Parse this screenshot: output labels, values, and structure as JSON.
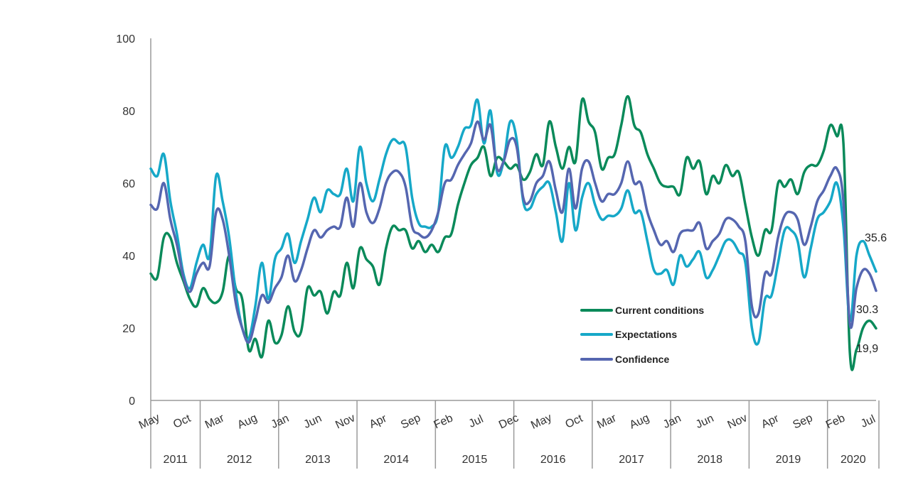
{
  "chart_data": {
    "type": "line",
    "title": "",
    "xlabel": "",
    "ylabel": "",
    "ylim": [
      0,
      100
    ],
    "yticks": [
      0,
      20,
      40,
      60,
      80,
      100
    ],
    "grid": false,
    "legend_position": "bottom-right (inside plot)",
    "x_start": "May 2011",
    "x_end": "Jul 2020",
    "x_frequency": "monthly",
    "month_ticks": [
      {
        "label": "May",
        "month_index": 0
      },
      {
        "label": "Oct",
        "month_index": 5
      },
      {
        "label": "Mar",
        "month_index": 10
      },
      {
        "label": "Aug",
        "month_index": 15
      },
      {
        "label": "Jan",
        "month_index": 20
      },
      {
        "label": "Jun",
        "month_index": 25
      },
      {
        "label": "Nov",
        "month_index": 30
      },
      {
        "label": "Apr",
        "month_index": 35
      },
      {
        "label": "Sep",
        "month_index": 40
      },
      {
        "label": "Feb",
        "month_index": 45
      },
      {
        "label": "Jul",
        "month_index": 50
      },
      {
        "label": "Dec",
        "month_index": 55
      },
      {
        "label": "May",
        "month_index": 60
      },
      {
        "label": "Oct",
        "month_index": 65
      },
      {
        "label": "Mar",
        "month_index": 70
      },
      {
        "label": "Aug",
        "month_index": 75
      },
      {
        "label": "Jan",
        "month_index": 80
      },
      {
        "label": "Jun",
        "month_index": 85
      },
      {
        "label": "Nov",
        "month_index": 90
      },
      {
        "label": "Apr",
        "month_index": 95
      },
      {
        "label": "Sep",
        "month_index": 100
      },
      {
        "label": "Feb",
        "month_index": 105
      },
      {
        "label": "Jul",
        "month_index": 110
      }
    ],
    "years": [
      {
        "label": "2011",
        "start": 0,
        "end": 8
      },
      {
        "label": "2012",
        "start": 8,
        "end": 20
      },
      {
        "label": "2013",
        "start": 20,
        "end": 32
      },
      {
        "label": "2014",
        "start": 32,
        "end": 44
      },
      {
        "label": "2015",
        "start": 44,
        "end": 56
      },
      {
        "label": "2016",
        "start": 56,
        "end": 68
      },
      {
        "label": "2017",
        "start": 68,
        "end": 80
      },
      {
        "label": "2018",
        "start": 80,
        "end": 92
      },
      {
        "label": "2019",
        "start": 92,
        "end": 104
      },
      {
        "label": "2020",
        "start": 104,
        "end": 111
      }
    ],
    "series": [
      {
        "name": "Current conditions",
        "color": "#0a8a5a",
        "end_label": "19,9",
        "values": [
          35,
          34,
          45,
          45,
          38,
          33,
          28,
          26,
          31,
          28,
          27,
          30,
          40,
          31,
          28,
          14,
          17,
          12,
          22,
          16,
          18,
          26,
          19,
          19,
          31,
          29,
          30,
          24,
          30,
          29,
          38,
          31,
          42,
          39,
          37,
          32,
          42,
          48,
          47,
          47,
          42,
          44,
          41,
          43,
          41,
          45,
          46,
          54,
          60,
          65,
          67,
          70,
          62,
          67,
          66,
          64,
          65,
          61,
          63,
          68,
          65,
          77,
          70,
          64,
          70,
          66,
          83,
          77,
          74,
          64,
          67,
          68,
          76,
          84,
          76,
          74,
          68,
          64,
          60,
          59,
          59,
          57,
          67,
          64,
          66,
          57,
          62,
          60,
          65,
          62,
          63,
          54,
          45,
          40,
          47,
          47,
          60,
          59,
          61,
          57,
          63,
          65,
          65,
          69,
          76,
          73,
          71,
          13,
          14,
          20,
          22,
          19.9
        ]
      },
      {
        "name": "Expectations",
        "color": "#16a8c8",
        "end_label": "35.6",
        "values": [
          64,
          62,
          68,
          55,
          46,
          35,
          31,
          38,
          43,
          40,
          62,
          55,
          45,
          30,
          20,
          17,
          26,
          38,
          28,
          39,
          42,
          46,
          38,
          44,
          50,
          56,
          52,
          58,
          57,
          57,
          64,
          55,
          70,
          60,
          55,
          61,
          68,
          72,
          71,
          70,
          56,
          49,
          48,
          48,
          52,
          70,
          67,
          70,
          75,
          76,
          83,
          71,
          80,
          63,
          66,
          77,
          72,
          55,
          53,
          57,
          59,
          60,
          52,
          44,
          60,
          47,
          56,
          60,
          54,
          50,
          51,
          51,
          53,
          58,
          52,
          52,
          44,
          36,
          35,
          36,
          32,
          40,
          37,
          39,
          41,
          34,
          36,
          40,
          44,
          44,
          41,
          38,
          20,
          16,
          28,
          29,
          38,
          47,
          47,
          44,
          34,
          42,
          50,
          52,
          55,
          60,
          48,
          22,
          40,
          44,
          40,
          35.6
        ]
      },
      {
        "name": "Confidence",
        "color": "#5566b0",
        "end_label": "30.3",
        "values": [
          54,
          53,
          60,
          50,
          43,
          34,
          30,
          35,
          38,
          37,
          52,
          50,
          40,
          27,
          20,
          16,
          22,
          29,
          27,
          31,
          34,
          40,
          33,
          36,
          42,
          47,
          45,
          47,
          48,
          48,
          56,
          48,
          60,
          52,
          49,
          53,
          60,
          63,
          63,
          59,
          48,
          46,
          45,
          47,
          52,
          60,
          61,
          65,
          68,
          71,
          77,
          72,
          76,
          64,
          66,
          72,
          70,
          56,
          55,
          60,
          62,
          66,
          58,
          52,
          64,
          53,
          64,
          66,
          60,
          55,
          57,
          57,
          60,
          66,
          60,
          60,
          52,
          47,
          43,
          44,
          41,
          46,
          47,
          47,
          49,
          42,
          44,
          46,
          50,
          50,
          48,
          44,
          26,
          24,
          35,
          35,
          45,
          51,
          52,
          50,
          43,
          48,
          55,
          58,
          62,
          64,
          55,
          21,
          31,
          36,
          35,
          30.3
        ]
      }
    ]
  }
}
